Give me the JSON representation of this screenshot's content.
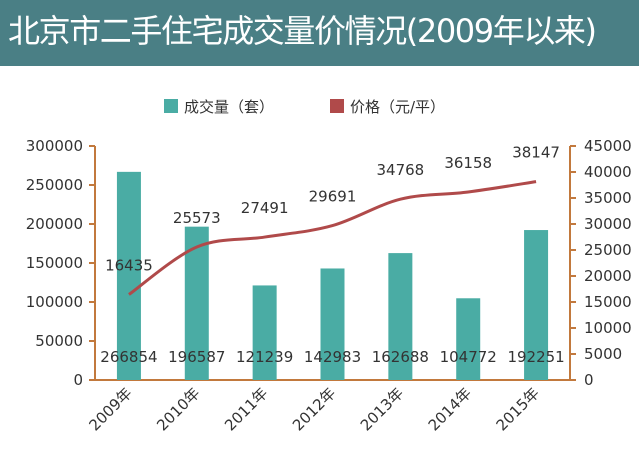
{
  "header": {
    "title": "北京市二手住宅成交量价情况(2009年以来)"
  },
  "colors": {
    "header_bg": "#4a7f85",
    "bar": "#4aaca4",
    "line": "#b04a4a",
    "axis": "#c2793d"
  },
  "chart_data": {
    "type": "bar",
    "categories": [
      "2009年",
      "2010年",
      "2011年",
      "2012年",
      "2013年",
      "2014年",
      "2015年"
    ],
    "series": [
      {
        "name": "成交量（套）",
        "type": "bar",
        "axis": "left",
        "values": [
          266854,
          196587,
          121239,
          142983,
          162688,
          104772,
          192251
        ],
        "labels": [
          "266854",
          "196587",
          "121239",
          "142983",
          "162688",
          "104772",
          "192251"
        ]
      },
      {
        "name": "价格（元/平）",
        "type": "line",
        "axis": "right",
        "values": [
          16435,
          25573,
          27491,
          29691,
          34768,
          36158,
          38147
        ],
        "labels": [
          "16435",
          "25573",
          "27491",
          "29691",
          "34768",
          "36158",
          "38147"
        ]
      }
    ],
    "y_left": {
      "ylim": [
        0,
        300000
      ],
      "ticks": [
        "0",
        "50000",
        "100000",
        "150000",
        "200000",
        "250000",
        "300000"
      ]
    },
    "y_right": {
      "ylim": [
        0,
        45000
      ],
      "ticks": [
        "0",
        "5000",
        "10000",
        "15000",
        "20000",
        "25000",
        "30000",
        "35000",
        "40000",
        "45000"
      ]
    },
    "legend_position": "top",
    "grid": false
  }
}
